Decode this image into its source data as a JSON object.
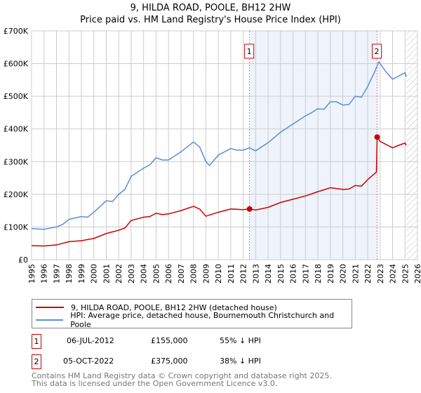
{
  "chart_data": {
    "type": "line",
    "title": "9, HILDA ROAD, POOLE, BH12 2HW",
    "subtitle": "Price paid vs. HM Land Registry's House Price Index (HPI)",
    "xlim": [
      1995,
      2026
    ],
    "ylim": [
      0,
      700000
    ],
    "yticks": [
      {
        "v": 0,
        "label": "£0"
      },
      {
        "v": 100000,
        "label": "£100K"
      },
      {
        "v": 200000,
        "label": "£200K"
      },
      {
        "v": 300000,
        "label": "£300K"
      },
      {
        "v": 400000,
        "label": "£400K"
      },
      {
        "v": 500000,
        "label": "£500K"
      },
      {
        "v": 600000,
        "label": "£600K"
      },
      {
        "v": 700000,
        "label": "£700K"
      }
    ],
    "xticks": [
      "1995",
      "1996",
      "1997",
      "1998",
      "1999",
      "2000",
      "2001",
      "2002",
      "2003",
      "2004",
      "2005",
      "2006",
      "2007",
      "2008",
      "2009",
      "2010",
      "2011",
      "2012",
      "2013",
      "2014",
      "2015",
      "2016",
      "2017",
      "2018",
      "2019",
      "2020",
      "2021",
      "2022",
      "2023",
      "2024",
      "2025",
      "2026"
    ],
    "series": [
      {
        "name": "9, HILDA ROAD, POOLE, BH12 2HW (detached house)",
        "color": "#cc0000",
        "points": [
          [
            1995,
            43
          ],
          [
            1996,
            42
          ],
          [
            1997,
            45
          ],
          [
            1998,
            55
          ],
          [
            1999,
            58
          ],
          [
            2000,
            65
          ],
          [
            2001,
            80
          ],
          [
            2002,
            90
          ],
          [
            2002.5,
            97
          ],
          [
            2003,
            120
          ],
          [
            2004,
            130
          ],
          [
            2004.5,
            132
          ],
          [
            2005,
            142
          ],
          [
            2005.5,
            138
          ],
          [
            2006,
            140
          ],
          [
            2007,
            150
          ],
          [
            2008,
            163
          ],
          [
            2008.5,
            155
          ],
          [
            2009,
            133
          ],
          [
            2010,
            145
          ],
          [
            2011,
            155
          ],
          [
            2012,
            153
          ],
          [
            2012.51,
            155
          ],
          [
            2013,
            152
          ],
          [
            2014,
            160
          ],
          [
            2015,
            175
          ],
          [
            2016,
            185
          ],
          [
            2017,
            195
          ],
          [
            2018,
            208
          ],
          [
            2019,
            220
          ],
          [
            2020,
            215
          ],
          [
            2020.5,
            216
          ],
          [
            2021,
            227
          ],
          [
            2021.5,
            225
          ],
          [
            2022,
            245
          ],
          [
            2022.7,
            268
          ],
          [
            2022.76,
            375
          ],
          [
            2023,
            362
          ],
          [
            2024,
            342
          ],
          [
            2024.5,
            350
          ],
          [
            2025,
            357
          ],
          [
            2025.1,
            350
          ]
        ]
      },
      {
        "name": "HPI: Average price, detached house, Bournemouth Christchurch and Poole",
        "color": "#5b8ed6",
        "points": [
          [
            1995,
            95
          ],
          [
            1996,
            93
          ],
          [
            1997,
            100
          ],
          [
            1997.5,
            108
          ],
          [
            1998,
            123
          ],
          [
            1999,
            132
          ],
          [
            1999.5,
            130
          ],
          [
            2000,
            145
          ],
          [
            2001,
            180
          ],
          [
            2001.5,
            178
          ],
          [
            2002,
            200
          ],
          [
            2002.5,
            215
          ],
          [
            2003,
            255
          ],
          [
            2004,
            280
          ],
          [
            2004.5,
            290
          ],
          [
            2005,
            312
          ],
          [
            2005.5,
            305
          ],
          [
            2006,
            305
          ],
          [
            2007,
            330
          ],
          [
            2007.5,
            345
          ],
          [
            2008,
            360
          ],
          [
            2008.5,
            345
          ],
          [
            2009,
            300
          ],
          [
            2009.3,
            288
          ],
          [
            2010,
            320
          ],
          [
            2011,
            340
          ],
          [
            2011.5,
            335
          ],
          [
            2012,
            335
          ],
          [
            2012.5,
            342
          ],
          [
            2013,
            333
          ],
          [
            2014,
            358
          ],
          [
            2015,
            390
          ],
          [
            2016,
            415
          ],
          [
            2017,
            440
          ],
          [
            2017.5,
            450
          ],
          [
            2018,
            462
          ],
          [
            2018.5,
            460
          ],
          [
            2019,
            483
          ],
          [
            2019.5,
            483
          ],
          [
            2020,
            473
          ],
          [
            2020.5,
            475
          ],
          [
            2021,
            500
          ],
          [
            2021.5,
            497
          ],
          [
            2022,
            530
          ],
          [
            2022.5,
            570
          ],
          [
            2022.9,
            605
          ],
          [
            2023,
            600
          ],
          [
            2023.4,
            578
          ],
          [
            2024,
            552
          ],
          [
            2024.5,
            562
          ],
          [
            2025,
            572
          ],
          [
            2025.1,
            560
          ]
        ]
      }
    ],
    "units": "thousands GBP",
    "sales": [
      {
        "n": "1",
        "x": 2012.51,
        "value": 155
      },
      {
        "n": "2",
        "x": 2022.76,
        "value": 375
      }
    ],
    "highlight_range": [
      2012.51,
      2022.76
    ],
    "forecast_hatch_from": 2025.1
  },
  "transactions": [
    {
      "n": "1",
      "date": "06-JUL-2012",
      "price": "£155,000",
      "diff": "55% ↓ HPI"
    },
    {
      "n": "2",
      "date": "05-OCT-2022",
      "price": "£375,000",
      "diff": "38% ↓ HPI"
    }
  ],
  "footer": {
    "line1": "Contains HM Land Registry data © Crown copyright and database right 2025.",
    "line2": "This data is licensed under the Open Government Licence v3.0."
  }
}
